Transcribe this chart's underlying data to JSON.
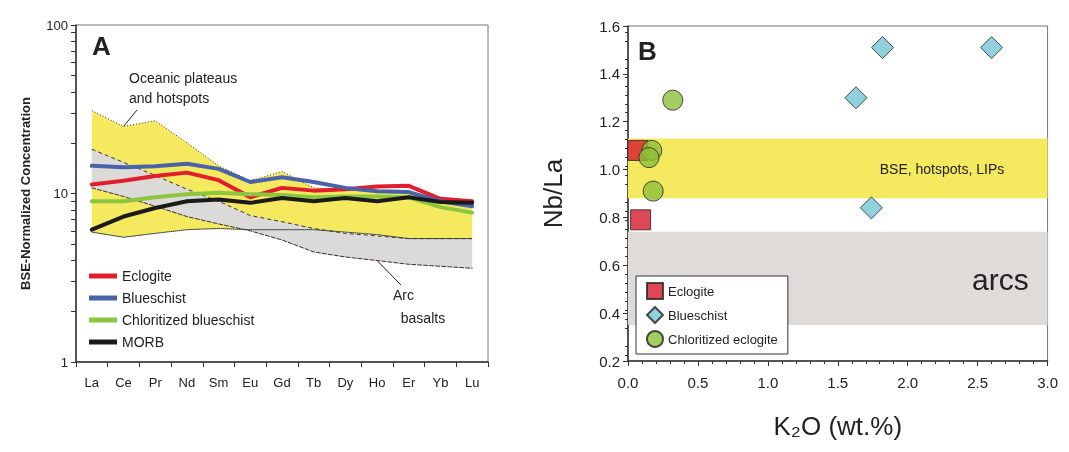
{
  "chart_data": [
    {
      "type": "line",
      "ylabel": "BSE-Normalized Concentration",
      "categories": [
        "La",
        "Ce",
        "Pr",
        "Nd",
        "Sm",
        "Eu",
        "Gd",
        "Tb",
        "Dy",
        "Ho",
        "Er",
        "Yb",
        "Lu"
      ],
      "log": "y",
      "ylim": [
        1,
        100
      ],
      "yticks": [
        1,
        {
          "value": 2,
          "label": null
        },
        {
          "value": 3,
          "label": null
        },
        {
          "value": 4,
          "label": null
        },
        {
          "value": 5,
          "label": null
        },
        {
          "value": 6,
          "label": null
        },
        {
          "value": 7,
          "label": null
        },
        {
          "value": 8,
          "label": null
        },
        {
          "value": 9,
          "label": null
        },
        10,
        {
          "value": 20,
          "label": null
        },
        {
          "value": 30,
          "label": null
        },
        {
          "value": 40,
          "label": null
        },
        {
          "value": 50,
          "label": null
        },
        {
          "value": 60,
          "label": null
        },
        {
          "value": 70,
          "label": null
        },
        {
          "value": 80,
          "label": null
        },
        {
          "value": 90,
          "label": null
        },
        100
      ],
      "grid": false,
      "legend": "bottom left",
      "marker": "none",
      "series": [
        {
          "type": "area",
          "color": "#f5e960",
          "line_style": "dotted",
          "values": [
            31,
            25,
            27,
            20,
            14.6,
            11.9,
            13.5,
            10.8,
            10.5,
            10.2,
            10,
            9,
            8.5
          ]
        },
        {
          "type": "line",
          "color": "#333333",
          "line_style": "dotted",
          "values": [
            5.9,
            5.5,
            5.8,
            6.1,
            6.2,
            6.1,
            6.1,
            6.1,
            5.9,
            5.7,
            5.4,
            5.4,
            5.4
          ]
        },
        {
          "type": "area",
          "color": "#dcdad8",
          "line_style": "dashed",
          "values": [
            18.3,
            15.3,
            12.8,
            10.6,
            9,
            7.4,
            6.8,
            6.2,
            5.8,
            5.6,
            5.4,
            5.4,
            5.4
          ]
        },
        {
          "type": "line",
          "color": "#333333",
          "line_style": "dashed",
          "values": [
            10.8,
            9.6,
            8.4,
            7.3,
            6.6,
            6,
            5.3,
            4.5,
            4.2,
            4,
            3.8,
            3.7,
            3.6
          ]
        },
        {
          "name": "Eclogite",
          "color": "#e31e2c",
          "values": [
            11.3,
            11.9,
            12.7,
            13.3,
            12,
            9.5,
            10.8,
            10.4,
            10.6,
            11,
            11.1,
            9.3,
            9
          ]
        },
        {
          "name": "Blueschist",
          "color": "#4a62a8",
          "values": [
            14.6,
            14.3,
            14.5,
            15,
            14,
            11.7,
            12.5,
            11.7,
            10.8,
            10.3,
            10.2,
            9,
            8.4
          ]
        },
        {
          "name": "Chloritized blueschist",
          "color": "#8cc63f",
          "values": [
            9,
            9,
            9.5,
            9.9,
            10.1,
            9.9,
            9.8,
            9.5,
            9.6,
            9.6,
            9.5,
            8.3,
            7.7
          ]
        },
        {
          "name": "MORB",
          "color": "#1a1a1a",
          "values": [
            6.1,
            7.3,
            8.2,
            9,
            9.2,
            8.8,
            9.4,
            9,
            9.4,
            9,
            9.5,
            8.9,
            8.8
          ]
        }
      ],
      "annotations": [
        "A",
        {
          "text": "Oceanic plateaus\nand hotspots",
          "x": "Ce",
          "y": 25
        },
        {
          "text": "Arc\n  basalts",
          "x": "Ho",
          "y": 4
        }
      ]
    },
    {
      "type": "scatter",
      "xlabel": "K₂O (wt.%)",
      "ylabel": "Nb/La",
      "xlim": [
        0,
        3
      ],
      "xticks": [
        {
          "value": 0,
          "label": "0.0"
        },
        {
          "value": 0.5,
          "label": "0.5"
        },
        {
          "value": 1,
          "label": "1.0"
        },
        {
          "value": 1.5,
          "label": "1.5"
        },
        {
          "value": 2,
          "label": "2.0"
        },
        {
          "value": 2.5,
          "label": "2.5"
        },
        {
          "value": 3,
          "label": "3.0"
        }
      ],
      "ylim": [
        0.2,
        1.6
      ],
      "yticks": [
        {
          "value": 0.2,
          "label": "0.2"
        },
        {
          "value": 0.4,
          "label": "0.4"
        },
        {
          "value": 0.6,
          "label": "0.6"
        },
        {
          "value": 0.8,
          "label": "0.8"
        },
        {
          "value": 1,
          "label": "1.0"
        },
        {
          "value": 1.2,
          "label": "1.2"
        },
        {
          "value": 1.4,
          "label": "1.4"
        },
        {
          "value": 1.6,
          "label": "1.6"
        }
      ],
      "grid": false,
      "legend": "bottom left",
      "series": [
        {
          "name": "Eclogite",
          "color": "#d7192d",
          "marker": "square",
          "x": [
            0.07,
            0.09
          ],
          "values": [
            1.08,
            0.79
          ]
        },
        {
          "name": "Blueschist",
          "color": "#74c6d4",
          "marker": "diamond",
          "x": [
            1.82,
            2.6,
            1.63,
            1.74
          ],
          "values": [
            1.51,
            1.51,
            1.3,
            0.84
          ]
        },
        {
          "name": "Chloritized eclogite",
          "color": "#8dbf3a",
          "marker": "circle",
          "x": [
            0.32,
            0.17,
            0.15,
            0.18
          ],
          "values": [
            1.29,
            1.08,
            1.05,
            0.91
          ]
        }
      ],
      "bands": [
        {
          "axis": "y",
          "from": 0.88,
          "to": 1.13,
          "label": "BSE, hotspots, LIPs",
          "color": "#f5e960"
        },
        {
          "axis": "y",
          "from": 0.35,
          "to": 0.74,
          "label": "arcs",
          "color": "#dedbd9"
        }
      ],
      "annotations": [
        "B"
      ]
    }
  ]
}
